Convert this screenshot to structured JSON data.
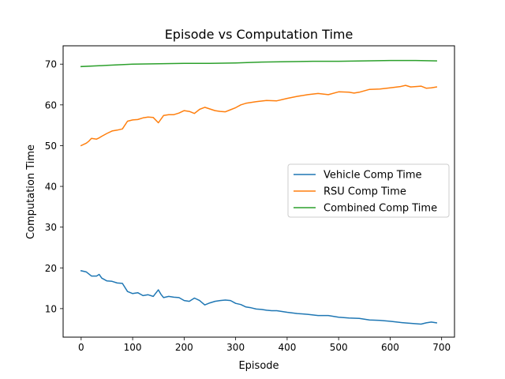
{
  "chart_data": {
    "type": "line",
    "title": "Episode vs Computation Time",
    "xlabel": "Episode",
    "ylabel": "Computation Time",
    "xlim": [
      -35,
      725
    ],
    "ylim": [
      3,
      74.5
    ],
    "xticks": [
      0,
      100,
      200,
      300,
      400,
      500,
      600,
      700
    ],
    "yticks": [
      10,
      20,
      30,
      40,
      50,
      60,
      70
    ],
    "grid": false,
    "legend_position": "center-right",
    "series": [
      {
        "name": "Vehicle Comp Time",
        "color": "#1f77b4",
        "x": [
          0,
          10,
          20,
          30,
          35,
          40,
          50,
          60,
          70,
          80,
          90,
          100,
          110,
          120,
          130,
          140,
          150,
          155,
          160,
          170,
          180,
          190,
          200,
          210,
          220,
          230,
          240,
          250,
          260,
          270,
          280,
          290,
          300,
          310,
          320,
          330,
          340,
          350,
          360,
          370,
          380,
          390,
          400,
          420,
          440,
          460,
          480,
          500,
          520,
          540,
          560,
          580,
          600,
          620,
          640,
          660,
          670,
          680,
          690
        ],
        "y": [
          19.3,
          19.0,
          18.0,
          18.0,
          18.4,
          17.5,
          16.8,
          16.7,
          16.3,
          16.2,
          14.2,
          13.7,
          13.9,
          13.2,
          13.4,
          13.0,
          14.6,
          13.5,
          12.7,
          13.0,
          12.8,
          12.7,
          12.0,
          11.8,
          12.6,
          12.0,
          10.9,
          11.4,
          11.8,
          12.0,
          12.1,
          12.0,
          11.3,
          11.0,
          10.4,
          10.2,
          9.9,
          9.8,
          9.6,
          9.5,
          9.5,
          9.3,
          9.1,
          8.8,
          8.6,
          8.3,
          8.3,
          7.9,
          7.7,
          7.6,
          7.2,
          7.1,
          6.9,
          6.6,
          6.4,
          6.2,
          6.5,
          6.7,
          6.5
        ]
      },
      {
        "name": "RSU Comp Time",
        "color": "#ff7f0e",
        "x": [
          0,
          10,
          15,
          20,
          30,
          35,
          40,
          50,
          60,
          70,
          80,
          90,
          100,
          110,
          120,
          130,
          140,
          150,
          160,
          170,
          180,
          190,
          200,
          210,
          220,
          230,
          240,
          250,
          260,
          270,
          280,
          290,
          300,
          310,
          320,
          340,
          360,
          380,
          400,
          420,
          440,
          460,
          480,
          500,
          520,
          530,
          540,
          560,
          580,
          600,
          620,
          630,
          640,
          660,
          670,
          680,
          690
        ],
        "y": [
          50.0,
          50.6,
          51.1,
          51.8,
          51.6,
          51.9,
          52.3,
          53.0,
          53.6,
          53.8,
          54.1,
          56.0,
          56.3,
          56.4,
          56.8,
          57.0,
          56.9,
          55.6,
          57.4,
          57.6,
          57.6,
          58.0,
          58.6,
          58.4,
          57.9,
          58.9,
          59.4,
          59.0,
          58.6,
          58.4,
          58.3,
          58.8,
          59.3,
          60.0,
          60.4,
          60.8,
          61.1,
          61.0,
          61.6,
          62.1,
          62.5,
          62.8,
          62.5,
          63.2,
          63.1,
          62.9,
          63.1,
          63.8,
          63.9,
          64.2,
          64.5,
          64.8,
          64.4,
          64.6,
          64.1,
          64.2,
          64.4
        ]
      },
      {
        "name": "Combined Comp Time",
        "color": "#2ca02c",
        "x": [
          0,
          50,
          100,
          150,
          200,
          250,
          300,
          350,
          400,
          450,
          500,
          550,
          600,
          650,
          690
        ],
        "y": [
          69.4,
          69.7,
          70.0,
          70.1,
          70.2,
          70.2,
          70.3,
          70.5,
          70.6,
          70.7,
          70.7,
          70.8,
          70.9,
          70.9,
          70.8
        ]
      }
    ]
  }
}
